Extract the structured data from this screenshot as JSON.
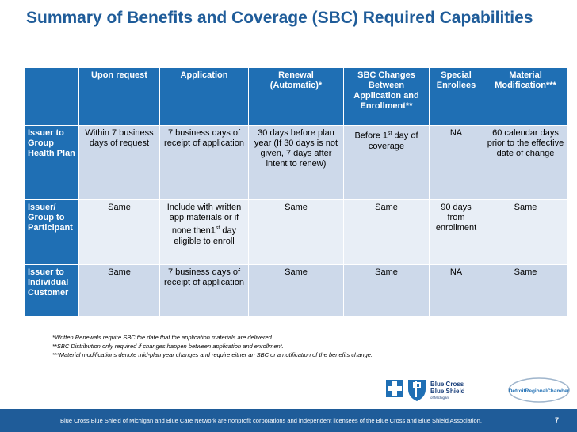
{
  "slide": {
    "title": "Summary of Benefits and Coverage (SBC) Required Capabilities"
  },
  "table": {
    "headers": [
      "",
      "Upon request",
      "Application",
      "Renewal (Automatic)*",
      "SBC Changes Between Application and Enrollment**",
      "Special Enrollees",
      "Material Modification***"
    ],
    "rows": [
      {
        "label": "Issuer to Group Health Plan",
        "cells": [
          "Within 7 business days of request",
          "7 business days of receipt of application",
          "30 days before plan year (If 30 days is not given, 7 days after intent to renew)",
          "Before 1st day of coverage",
          "NA",
          "60 calendar days prior to the effective date of change"
        ]
      },
      {
        "label": "Issuer/ Group to Participant",
        "cells": [
          "Same",
          "Include with written app materials  or if none then1st day eligible to enroll",
          "Same",
          "Same",
          "90 days from enrollment",
          "Same"
        ]
      },
      {
        "label": "Issuer to Individual Customer",
        "cells": [
          "Same",
          "7 business days of receipt of application",
          "Same",
          "Same",
          "NA",
          "Same"
        ]
      }
    ]
  },
  "footnotes": {
    "renewal": "*Written Renewals require SBC the date that the application materials are delivered.",
    "distribution": "**SBC Distribution only required if changes happen between application and enrollment.",
    "material_pre": "***Material modifications denote mid-plan year changes and require either an SBC ",
    "material_or": "or",
    "material_post": " a notification of the benefits change."
  },
  "logos": {
    "bcbs_line1": "Blue Cross",
    "bcbs_line2": "Blue Shield",
    "bcbs_line3": "of Michigan",
    "drc_line1": "DetroitRegionalChamber"
  },
  "footer": {
    "text": "Blue Cross Blue Shield of Michigan and Blue Care Network are nonprofit corporations and independent licensees of the Blue Cross and Blue Shield Association.",
    "page_number": "7"
  },
  "colors": {
    "title": "#1f5c99",
    "header_fill": "#1f6fb4",
    "row_fill_dark": "#cdd9ea",
    "row_fill_light": "#e8eef6",
    "footer_bar": "#1f5c99"
  }
}
